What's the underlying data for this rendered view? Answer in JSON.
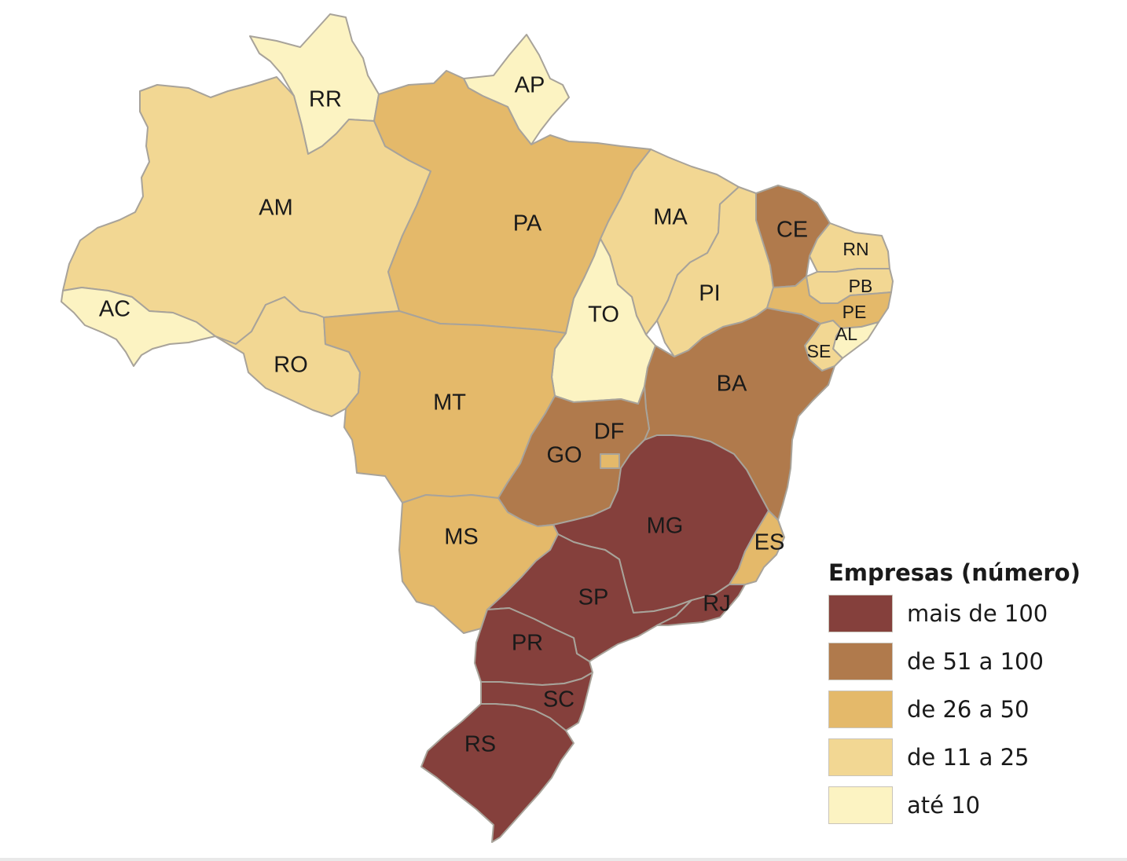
{
  "legend": {
    "title": "Empresas (número)",
    "classes": [
      {
        "label": "mais de 100",
        "color": "#85403c"
      },
      {
        "label": "de 51 a 100",
        "color": "#b07a4c"
      },
      {
        "label": "de 26 a 50",
        "color": "#e4b96a"
      },
      {
        "label": "de 11 a 25",
        "color": "#f2d793"
      },
      {
        "label": "até 10",
        "color": "#fcf3c2"
      }
    ]
  },
  "states": [
    {
      "code": "RR",
      "class": "até 10"
    },
    {
      "code": "AP",
      "class": "até 10"
    },
    {
      "code": "AM",
      "class": "de 11 a 25"
    },
    {
      "code": "PA",
      "class": "de 26 a 50"
    },
    {
      "code": "MA",
      "class": "de 11 a 25"
    },
    {
      "code": "CE",
      "class": "de 51 a 100"
    },
    {
      "code": "RN",
      "class": "de 11 a 25"
    },
    {
      "code": "PB",
      "class": "de 11 a 25"
    },
    {
      "code": "PE",
      "class": "de 26 a 50"
    },
    {
      "code": "AL",
      "class": "até 10"
    },
    {
      "code": "SE",
      "class": "de 11 a 25"
    },
    {
      "code": "PI",
      "class": "de 11 a 25"
    },
    {
      "code": "TO",
      "class": "até 10"
    },
    {
      "code": "AC",
      "class": "até 10"
    },
    {
      "code": "RO",
      "class": "de 11 a 25"
    },
    {
      "code": "MT",
      "class": "de 26 a 50"
    },
    {
      "code": "BA",
      "class": "de 51 a 100"
    },
    {
      "code": "DF",
      "class": "de 26 a 50"
    },
    {
      "code": "GO",
      "class": "de 51 a 100"
    },
    {
      "code": "MG",
      "class": "mais de 100"
    },
    {
      "code": "ES",
      "class": "de 26 a 50"
    },
    {
      "code": "MS",
      "class": "de 26 a 50"
    },
    {
      "code": "SP",
      "class": "mais de 100"
    },
    {
      "code": "RJ",
      "class": "mais de 100"
    },
    {
      "code": "PR",
      "class": "mais de 100"
    },
    {
      "code": "SC",
      "class": "mais de 100"
    },
    {
      "code": "RS",
      "class": "mais de 100"
    }
  ]
}
